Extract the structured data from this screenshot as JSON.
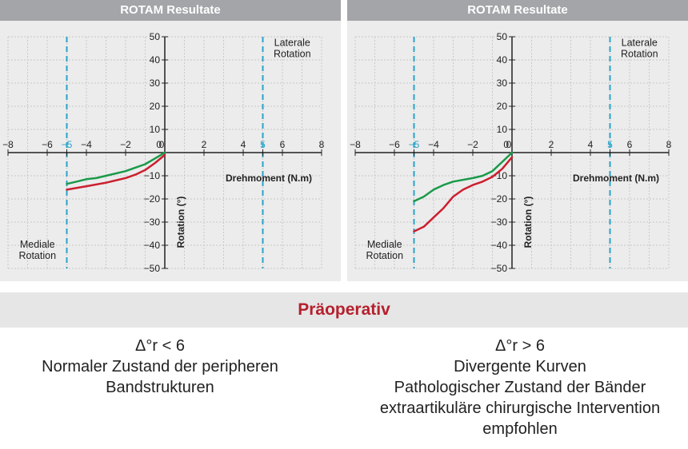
{
  "colors": {
    "green": "#1a9a4a",
    "red": "#cc1f2f",
    "limit": "#2aa3c8",
    "axis": "#222222",
    "grid": "#c8c8c8"
  },
  "section_title": "Präoperativ",
  "notes": {
    "left": [
      "Δ°r < 6",
      "Normaler Zustand der peripheren",
      "Bandstrukturen"
    ],
    "right": [
      "Δ°r > 6",
      "Divergente Kurven",
      "Pathologischer Zustand der Bänder",
      "extraartikuläre chirurgische Intervention",
      "empfohlen"
    ]
  },
  "chart_data": [
    {
      "type": "line",
      "title": "ROTAM Resultate",
      "xlabel": "Drehmoment (N.m)",
      "ylabel": "Rotation (°)",
      "xlim": [
        -8,
        8
      ],
      "ylim": [
        -50,
        50
      ],
      "x_ticks": [
        -8,
        -6,
        -5,
        -4,
        -2,
        0,
        2,
        4,
        5,
        6,
        8
      ],
      "y_ticks": [
        50,
        40,
        30,
        20,
        10,
        0,
        -10,
        -20,
        -30,
        -40,
        -50
      ],
      "highlight_ticks": [
        -5,
        5
      ],
      "limit_lines": [
        -5,
        5
      ],
      "annotations": [
        {
          "lines": [
            "Laterale",
            "Rotation"
          ],
          "x": 6.5,
          "y": 46
        },
        {
          "lines": [
            "Mediale",
            "Rotation"
          ],
          "x": -6.5,
          "y": -41
        }
      ],
      "grid": true,
      "series": [
        {
          "color": "green",
          "points": [
            [
              -5,
              -13.5
            ],
            [
              -4.5,
              -12.5
            ],
            [
              -4,
              -11.5
            ],
            [
              -3.5,
              -11
            ],
            [
              -3,
              -10
            ],
            [
              -2,
              -8
            ],
            [
              -1.5,
              -6.5
            ],
            [
              -1,
              -5
            ],
            [
              -0.5,
              -2.5
            ],
            [
              0,
              0
            ]
          ]
        },
        {
          "color": "red",
          "points": [
            [
              -5,
              -16
            ],
            [
              -4,
              -14.5
            ],
            [
              -3,
              -13
            ],
            [
              -2,
              -11
            ],
            [
              -1.5,
              -9.5
            ],
            [
              -1,
              -7.5
            ],
            [
              -0.5,
              -4.5
            ],
            [
              0,
              -1
            ]
          ]
        }
      ]
    },
    {
      "type": "line",
      "title": "ROTAM Resultate",
      "xlabel": "Drehmoment (N.m)",
      "ylabel": "Rotation (°)",
      "xlim": [
        -8,
        8
      ],
      "ylim": [
        -50,
        50
      ],
      "x_ticks": [
        -8,
        -6,
        -5,
        -4,
        -2,
        0,
        2,
        4,
        5,
        6,
        8
      ],
      "y_ticks": [
        50,
        40,
        30,
        20,
        10,
        0,
        -10,
        -20,
        -30,
        -40,
        -50
      ],
      "highlight_ticks": [
        -5,
        5
      ],
      "limit_lines": [
        -5,
        5
      ],
      "annotations": [
        {
          "lines": [
            "Laterale",
            "Rotation"
          ],
          "x": 6.5,
          "y": 46
        },
        {
          "lines": [
            "Mediale",
            "Rotation"
          ],
          "x": -6.5,
          "y": -41
        }
      ],
      "grid": true,
      "series": [
        {
          "color": "green",
          "points": [
            [
              -5,
              -21
            ],
            [
              -4.5,
              -19
            ],
            [
              -4,
              -16
            ],
            [
              -3.5,
              -14
            ],
            [
              -3,
              -12.5
            ],
            [
              -2,
              -11
            ],
            [
              -1.5,
              -10
            ],
            [
              -1,
              -8
            ],
            [
              -0.5,
              -4
            ],
            [
              0,
              0
            ]
          ]
        },
        {
          "color": "red",
          "points": [
            [
              -5,
              -34
            ],
            [
              -4.5,
              -32
            ],
            [
              -4,
              -28
            ],
            [
              -3.5,
              -24
            ],
            [
              -3,
              -19
            ],
            [
              -2.5,
              -16
            ],
            [
              -2,
              -14
            ],
            [
              -1.5,
              -12.5
            ],
            [
              -1,
              -10.5
            ],
            [
              -0.5,
              -7
            ],
            [
              0,
              -2
            ]
          ]
        }
      ]
    }
  ]
}
